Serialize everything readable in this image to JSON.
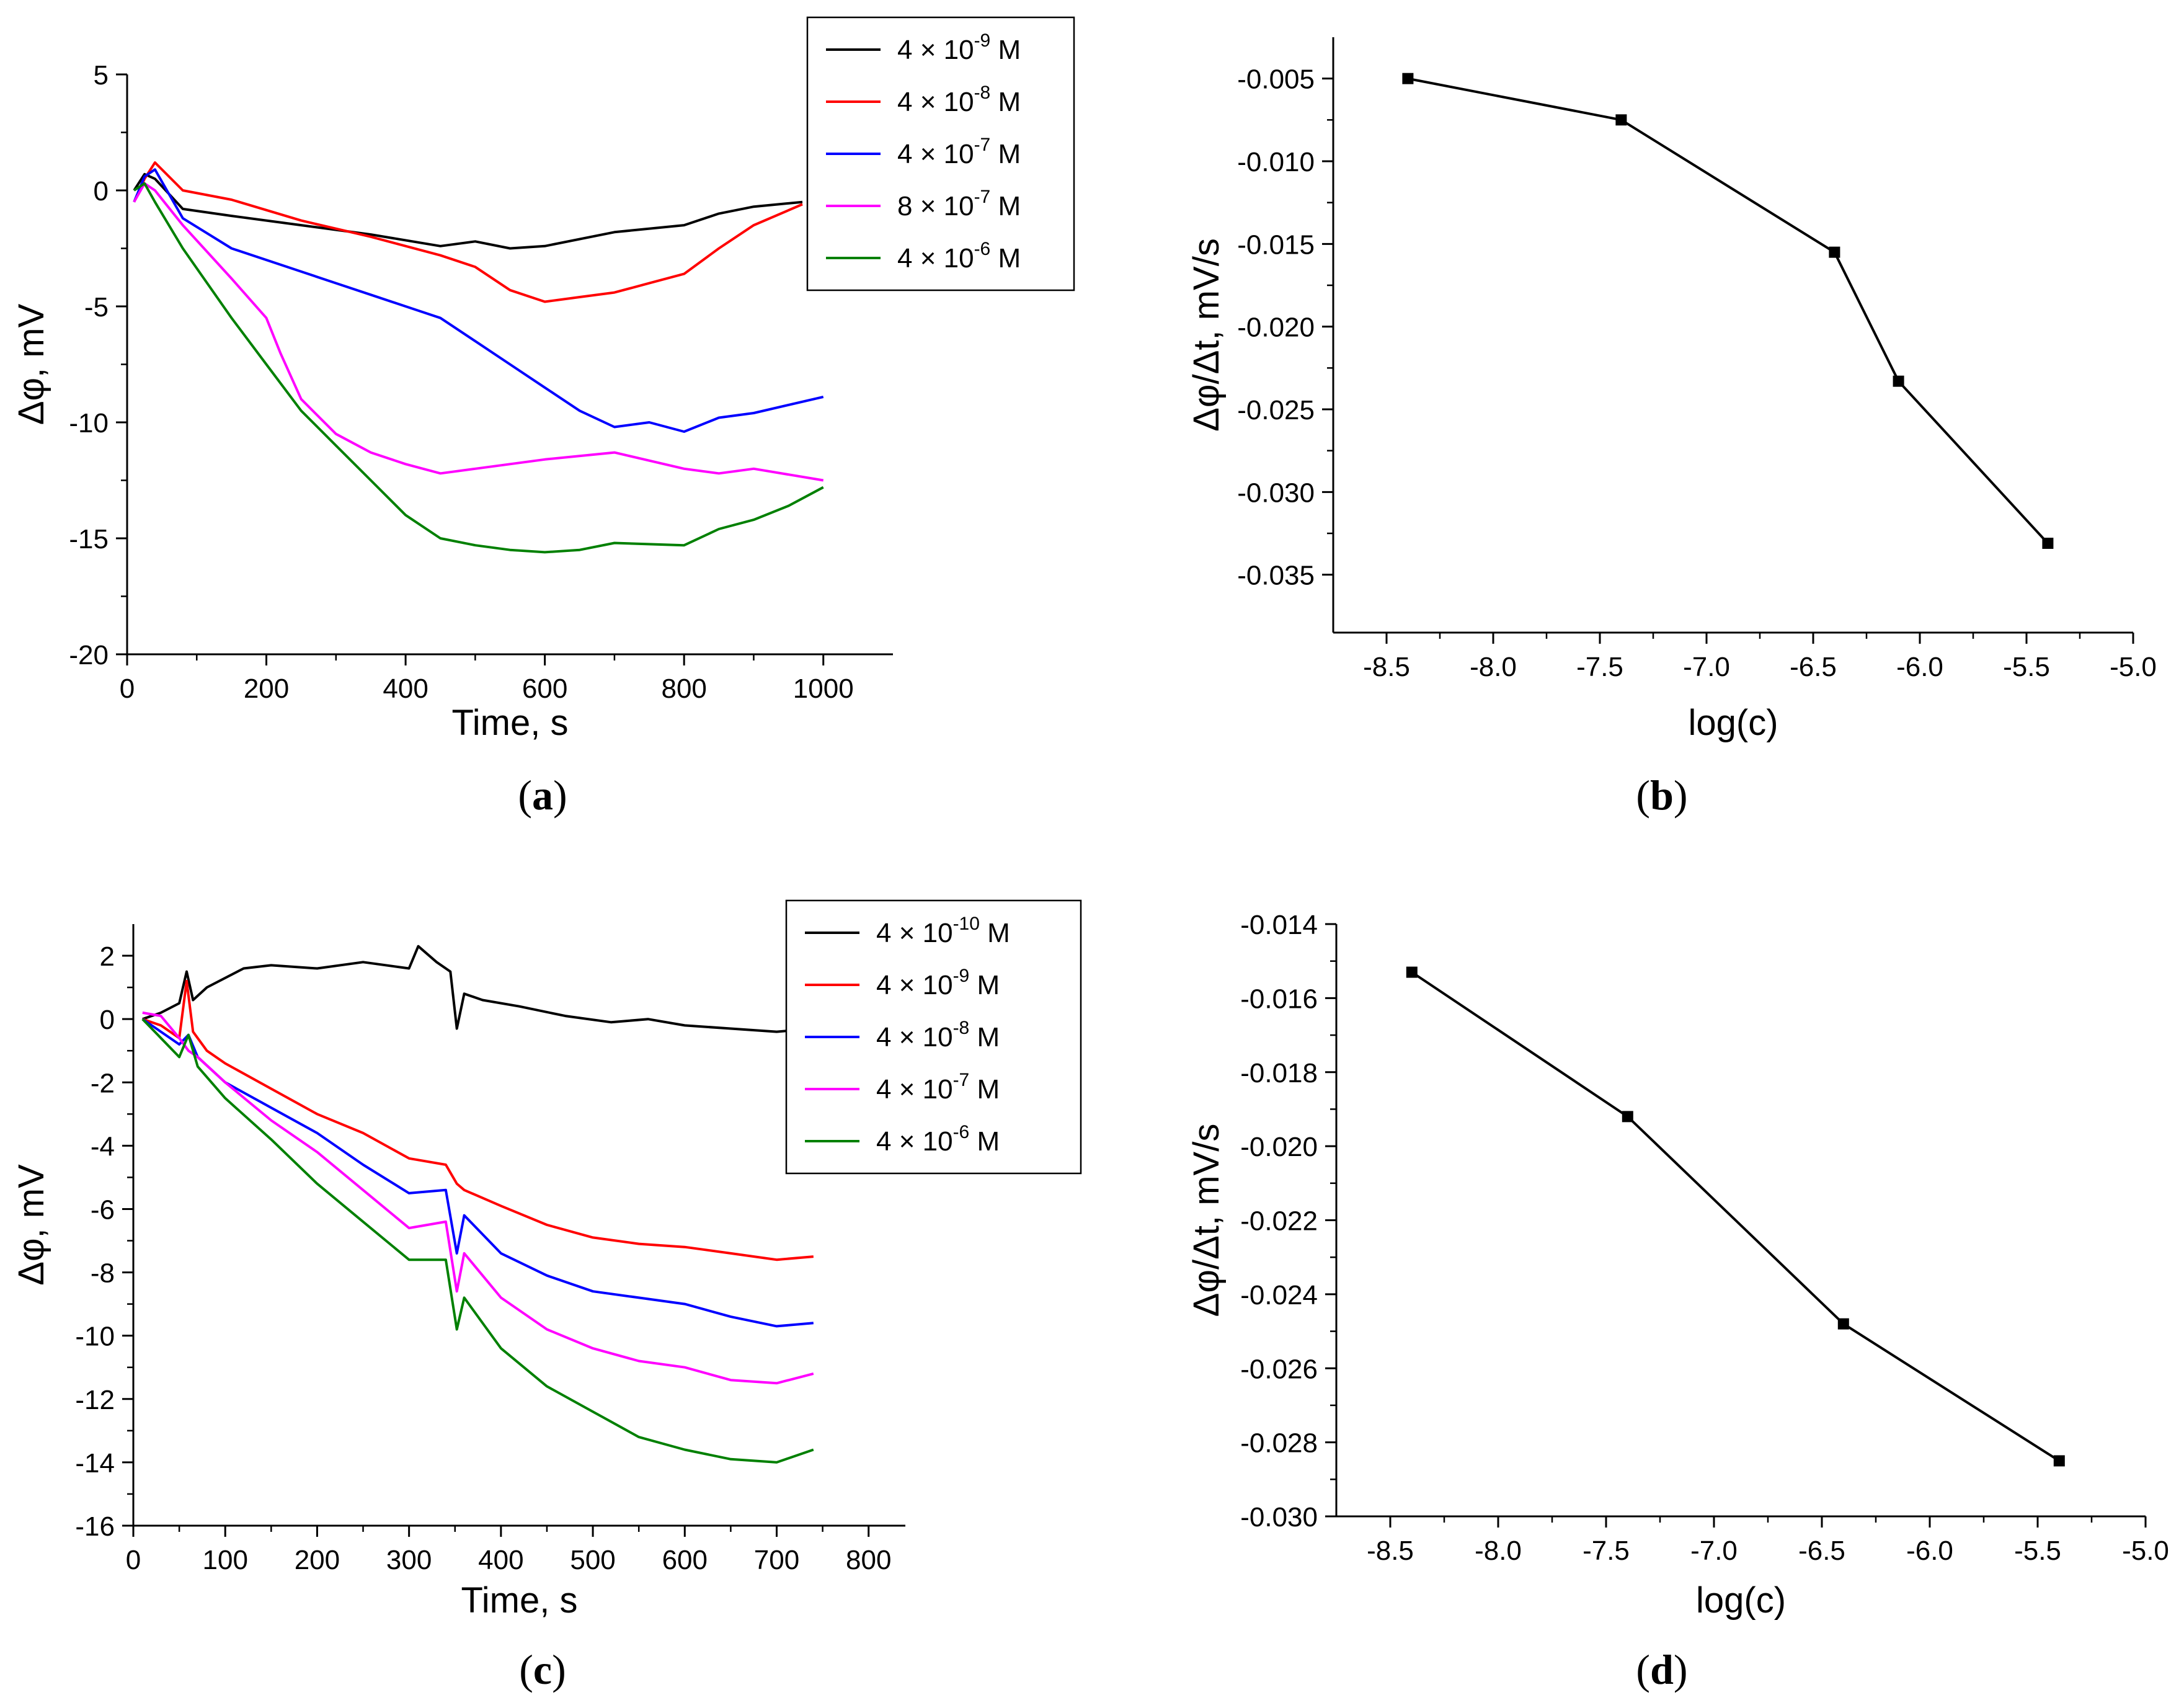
{
  "chart_data": [
    {
      "panel": "(a)",
      "panel_letter": "a",
      "type": "line",
      "xlabel": "Time, s",
      "ylabel": "Δφ, mV",
      "xlim": [
        0,
        1100
      ],
      "ylim": [
        -20,
        5
      ],
      "xticks": [
        0,
        200,
        400,
        600,
        800,
        1000
      ],
      "yticks": [
        -20,
        -15,
        -10,
        -5,
        0,
        5
      ],
      "grid": false,
      "legend_position": "top-right",
      "series": [
        {
          "name": "4 × 10-9 M",
          "base": "4 × 10",
          "exp": "-9",
          "unit": "M",
          "color": "#000000",
          "x": [
            10,
            25,
            40,
            80,
            150,
            250,
            350,
            450,
            500,
            550,
            600,
            700,
            800,
            850,
            900,
            970
          ],
          "y": [
            0,
            0.7,
            0.5,
            -0.8,
            -1.1,
            -1.5,
            -1.9,
            -2.4,
            -2.2,
            -2.5,
            -2.4,
            -1.8,
            -1.5,
            -1.0,
            -0.7,
            -0.5
          ]
        },
        {
          "name": "4 × 10-8 M",
          "base": "4 × 10",
          "exp": "-8",
          "unit": "M",
          "color": "#ff0000",
          "x": [
            10,
            25,
            40,
            80,
            150,
            250,
            350,
            450,
            500,
            550,
            600,
            650,
            700,
            750,
            800,
            850,
            900,
            970
          ],
          "y": [
            -0.5,
            0.5,
            1.2,
            0.0,
            -0.4,
            -1.3,
            -2.0,
            -2.8,
            -3.3,
            -4.3,
            -4.8,
            -4.6,
            -4.4,
            -4.0,
            -3.6,
            -2.5,
            -1.5,
            -0.6
          ]
        },
        {
          "name": "4 × 10-7 M",
          "base": "4 × 10",
          "exp": "-7",
          "unit": "M",
          "color": "#0000ff",
          "x": [
            10,
            25,
            40,
            80,
            150,
            250,
            300,
            350,
            400,
            450,
            500,
            550,
            600,
            650,
            700,
            750,
            800,
            850,
            900,
            1000
          ],
          "y": [
            -0.5,
            0.6,
            0.9,
            -1.2,
            -2.5,
            -3.5,
            -4.0,
            -4.5,
            -5.0,
            -5.5,
            -6.5,
            -7.5,
            -8.5,
            -9.5,
            -10.2,
            -10.0,
            -10.4,
            -9.8,
            -9.6,
            -8.9
          ]
        },
        {
          "name": "8 × 10-7 M",
          "base": "8 × 10",
          "exp": "-7",
          "unit": "M",
          "color": "#ff00ff",
          "x": [
            10,
            25,
            40,
            80,
            150,
            200,
            220,
            250,
            300,
            350,
            400,
            450,
            500,
            550,
            600,
            700,
            800,
            850,
            900,
            1000
          ],
          "y": [
            -0.5,
            0.3,
            0.0,
            -1.5,
            -3.8,
            -5.5,
            -7.0,
            -9.0,
            -10.5,
            -11.3,
            -11.8,
            -12.2,
            -12.0,
            -11.8,
            -11.6,
            -11.3,
            -12.0,
            -12.2,
            -12.0,
            -12.5
          ]
        },
        {
          "name": "4 × 10-6 M",
          "base": "4 × 10",
          "exp": "-6",
          "unit": "M",
          "color": "#008000",
          "x": [
            10,
            25,
            40,
            80,
            150,
            200,
            250,
            300,
            350,
            400,
            450,
            500,
            550,
            600,
            650,
            700,
            800,
            850,
            900,
            950,
            1000
          ],
          "y": [
            0,
            0.3,
            -0.5,
            -2.5,
            -5.5,
            -7.5,
            -9.5,
            -11.0,
            -12.5,
            -14.0,
            -15.0,
            -15.3,
            -15.5,
            -15.6,
            -15.5,
            -15.2,
            -15.3,
            -14.6,
            -14.2,
            -13.6,
            -12.8
          ]
        }
      ]
    },
    {
      "panel": "(b)",
      "panel_letter": "b",
      "type": "line",
      "xlabel": "log(c)",
      "ylabel": "Δφ/Δt, mV/s",
      "xlim": [
        -8.75,
        -5.0
      ],
      "ylim": [
        -0.0385,
        -0.0025
      ],
      "xticks": [
        -8.5,
        -8.0,
        -7.5,
        -7.0,
        -6.5,
        -6.0,
        -5.5,
        -5.0
      ],
      "xtick_labels": [
        "-8.5",
        "-8.0",
        "-7.5",
        "-7.0",
        "-6.5",
        "-6.0",
        "-5.5",
        "-5.0"
      ],
      "yticks": [
        -0.035,
        -0.03,
        -0.025,
        -0.02,
        -0.015,
        -0.01,
        -0.005
      ],
      "ytick_labels": [
        "-0.035",
        "-0.030",
        "-0.025",
        "-0.020",
        "-0.015",
        "-0.010",
        "-0.005"
      ],
      "grid": false,
      "marker": "square",
      "series": [
        {
          "color": "#000000",
          "x": [
            -8.4,
            -7.4,
            -6.4,
            -6.1,
            -5.4
          ],
          "y": [
            -0.005,
            -0.0075,
            -0.0155,
            -0.0233,
            -0.0331
          ]
        }
      ]
    },
    {
      "panel": "(c)",
      "panel_letter": "c",
      "type": "line",
      "xlabel": "Time, s",
      "ylabel": "Δφ, mV",
      "xlim": [
        0,
        840
      ],
      "ylim": [
        -16,
        3
      ],
      "xticks": [
        0,
        100,
        200,
        300,
        400,
        500,
        600,
        700,
        800
      ],
      "yticks": [
        -16,
        -14,
        -12,
        -10,
        -8,
        -6,
        -4,
        -2,
        0,
        2
      ],
      "grid": false,
      "legend_position": "top-right",
      "series": [
        {
          "name": "4 × 10-10 M",
          "base": "4 × 10",
          "exp": "-10",
          "unit": "M",
          "color": "#000000",
          "x": [
            10,
            30,
            50,
            58,
            65,
            80,
            120,
            150,
            200,
            250,
            300,
            310,
            330,
            345,
            352,
            360,
            380,
            420,
            470,
            520,
            560,
            600,
            650,
            700,
            740
          ],
          "y": [
            0,
            0.2,
            0.5,
            1.5,
            0.6,
            1.0,
            1.6,
            1.7,
            1.6,
            1.8,
            1.6,
            2.3,
            1.8,
            1.5,
            -0.3,
            0.8,
            0.6,
            0.4,
            0.1,
            -0.1,
            0.0,
            -0.2,
            -0.3,
            -0.4,
            -0.3
          ]
        },
        {
          "name": "4 × 10-9 M",
          "base": "4 × 10",
          "exp": "-9",
          "unit": "M",
          "color": "#ff0000",
          "x": [
            10,
            30,
            50,
            58,
            65,
            80,
            100,
            150,
            200,
            250,
            300,
            340,
            352,
            360,
            400,
            450,
            500,
            550,
            600,
            650,
            700,
            740
          ],
          "y": [
            0,
            -0.2,
            -0.6,
            1.2,
            -0.4,
            -1.0,
            -1.4,
            -2.2,
            -3.0,
            -3.6,
            -4.4,
            -4.6,
            -5.2,
            -5.4,
            -5.9,
            -6.5,
            -6.9,
            -7.1,
            -7.2,
            -7.4,
            -7.6,
            -7.5
          ]
        },
        {
          "name": "4 × 10-8 M",
          "base": "4 × 10",
          "exp": "-8",
          "unit": "M",
          "color": "#0000ff",
          "x": [
            10,
            30,
            50,
            60,
            70,
            100,
            150,
            200,
            250,
            300,
            340,
            352,
            360,
            400,
            450,
            500,
            550,
            600,
            650,
            700,
            740
          ],
          "y": [
            0,
            -0.4,
            -0.8,
            -0.5,
            -1.2,
            -2.0,
            -2.8,
            -3.6,
            -4.6,
            -5.5,
            -5.4,
            -7.4,
            -6.2,
            -7.4,
            -8.1,
            -8.6,
            -8.8,
            -9.0,
            -9.4,
            -9.7,
            -9.6
          ]
        },
        {
          "name": "4 × 10-7 M",
          "base": "4 × 10",
          "exp": "-7",
          "unit": "M",
          "color": "#ff00ff",
          "x": [
            10,
            30,
            50,
            60,
            70,
            100,
            150,
            200,
            250,
            300,
            340,
            352,
            360,
            400,
            450,
            500,
            550,
            600,
            650,
            700,
            740
          ],
          "y": [
            0.2,
            0.1,
            -0.6,
            -1.0,
            -1.2,
            -2.0,
            -3.2,
            -4.2,
            -5.4,
            -6.6,
            -6.4,
            -8.6,
            -7.4,
            -8.8,
            -9.8,
            -10.4,
            -10.8,
            -11.0,
            -11.4,
            -11.5,
            -11.2
          ]
        },
        {
          "name": "4 × 10-6 M",
          "base": "4 × 10",
          "exp": "-6",
          "unit": "M",
          "color": "#008000",
          "x": [
            10,
            30,
            50,
            60,
            70,
            100,
            150,
            200,
            250,
            300,
            340,
            352,
            360,
            400,
            450,
            500,
            550,
            600,
            650,
            700,
            740
          ],
          "y": [
            0,
            -0.6,
            -1.2,
            -0.5,
            -1.5,
            -2.5,
            -3.8,
            -5.2,
            -6.4,
            -7.6,
            -7.6,
            -9.8,
            -8.8,
            -10.4,
            -11.6,
            -12.4,
            -13.2,
            -13.6,
            -13.9,
            -14.0,
            -13.6
          ]
        }
      ]
    },
    {
      "panel": "(d)",
      "panel_letter": "d",
      "type": "line",
      "xlabel": "log(c)",
      "ylabel": "Δφ/Δt, mV/s",
      "xlim": [
        -8.75,
        -5.0
      ],
      "ylim": [
        -0.03,
        -0.014
      ],
      "xticks": [
        -8.5,
        -8.0,
        -7.5,
        -7.0,
        -6.5,
        -6.0,
        -5.5,
        -5.0
      ],
      "xtick_labels": [
        "-8.5",
        "-8.0",
        "-7.5",
        "-7.0",
        "-6.5",
        "-6.0",
        "-5.5",
        "-5.0"
      ],
      "yticks": [
        -0.03,
        -0.028,
        -0.026,
        -0.024,
        -0.022,
        -0.02,
        -0.018,
        -0.016,
        -0.014
      ],
      "ytick_labels": [
        "-0.030",
        "-0.028",
        "-0.026",
        "-0.024",
        "-0.022",
        "-0.020",
        "-0.018",
        "-0.016",
        "-0.014"
      ],
      "grid": false,
      "marker": "square",
      "series": [
        {
          "color": "#000000",
          "x": [
            -8.4,
            -7.4,
            -6.4,
            -5.4
          ],
          "y": [
            -0.0153,
            -0.0192,
            -0.0248,
            -0.0285
          ]
        }
      ]
    }
  ]
}
